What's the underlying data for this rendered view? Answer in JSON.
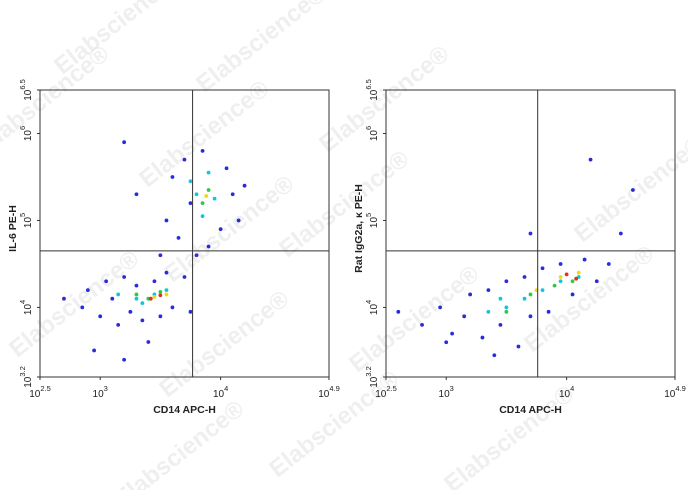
{
  "watermark": "Elabscience®",
  "chart_data": [
    {
      "type": "scatter",
      "x_label": "CD14 APC-H",
      "y_label": "IL-6 PE-H",
      "xscale": "log",
      "yscale": "log",
      "xlim": [
        316.23,
        79432.82
      ],
      "ylim": [
        1584.89,
        3162277.66
      ],
      "xticks": [
        {
          "value": 316.23,
          "label": "10^2.5"
        },
        {
          "value": 1000,
          "label": "10^3"
        },
        {
          "value": 10000,
          "label": "10^4"
        },
        {
          "value": 79432.82,
          "label": "10^4.9"
        }
      ],
      "yticks": [
        {
          "value": 1584.89,
          "label": "10^3.2"
        },
        {
          "value": 10000,
          "label": "10^4"
        },
        {
          "value": 100000,
          "label": "10^5"
        },
        {
          "value": 1000000,
          "label": "10^6"
        },
        {
          "value": 3162277.66,
          "label": "10^6.5"
        }
      ],
      "gate": {
        "x": 5850,
        "y": 44700
      },
      "series": [
        {
          "color": "#2b2bd9",
          "x": [
            710,
            790,
            1000,
            1120,
            1260,
            1410,
            1580,
            1780,
            2000,
            2240,
            2820,
            3160,
            3550,
            3980,
            5010,
            5620,
            500,
            890,
            2510,
            1580,
            3550,
            3980,
            4470,
            5010,
            5620,
            6310,
            7080,
            10000,
            11200,
            12600,
            15800,
            7940,
            2000,
            3160,
            14100,
            1580
          ],
          "values": [
            10000,
            15800,
            7900,
            20000,
            12600,
            6300,
            22400,
            8900,
            17800,
            7100,
            20000,
            7900,
            25100,
            10000,
            22400,
            8900,
            12600,
            3200,
            4000,
            2500,
            100000,
            316000,
            63100,
            501000,
            158000,
            39800,
            631000,
            79400,
            398000,
            200000,
            251000,
            50100,
            200000,
            39800,
            100000,
            794000
          ]
        },
        {
          "color": "#14c3e0",
          "x": [
            1410,
            2000,
            2820,
            3550,
            2240,
            6310,
            7080,
            8910,
            5620,
            7940
          ],
          "values": [
            14100,
            12600,
            14100,
            15800,
            11200,
            200000,
            112000,
            178000,
            282000,
            355000
          ]
        },
        {
          "color": "#2fc84a",
          "x": [
            2000,
            2510,
            3160,
            7080,
            7940
          ],
          "values": [
            14100,
            12600,
            15100,
            158000,
            224000
          ]
        },
        {
          "color": "#eadb12",
          "x": [
            2820,
            3550,
            7590
          ],
          "values": [
            13200,
            14100,
            191000
          ]
        },
        {
          "color": "#e2321c",
          "x": [
            3160,
            2630
          ],
          "values": [
            13800,
            12600
          ]
        }
      ]
    },
    {
      "type": "scatter",
      "x_label": "CD14 APC-H",
      "y_label": "Rat IgG2a, κ PE-H",
      "xscale": "log",
      "yscale": "log",
      "xlim": [
        316.23,
        79432.82
      ],
      "ylim": [
        1584.89,
        3162277.66
      ],
      "xticks": [
        {
          "value": 316.23,
          "label": "10^2.5"
        },
        {
          "value": 1000,
          "label": "10^3"
        },
        {
          "value": 10000,
          "label": "10^4"
        },
        {
          "value": 79432.82,
          "label": "10^4.9"
        }
      ],
      "yticks": [
        {
          "value": 1584.89,
          "label": "10^3.2"
        },
        {
          "value": 10000,
          "label": "10^4"
        },
        {
          "value": 100000,
          "label": "10^5"
        },
        {
          "value": 1000000,
          "label": "10^6"
        },
        {
          "value": 3162277.66,
          "label": "10^6.5"
        }
      ],
      "gate": {
        "x": 5750,
        "y": 44700
      },
      "series": [
        {
          "color": "#2b2bd9",
          "x": [
            400,
            630,
            890,
            1120,
            1410,
            1580,
            2000,
            2240,
            2820,
            3160,
            3980,
            4470,
            5010,
            6310,
            7080,
            8910,
            11200,
            14100,
            17800,
            22400,
            2510,
            1000,
            15800,
            35500,
            28200,
            5010
          ],
          "values": [
            8900,
            6300,
            10000,
            5000,
            7900,
            14100,
            4500,
            15800,
            6300,
            20000,
            3550,
            22400,
            7900,
            28200,
            8900,
            31600,
            14100,
            35500,
            20000,
            31600,
            2820,
            3980,
            501000,
            224000,
            70800,
            70800
          ]
        },
        {
          "color": "#14c3e0",
          "x": [
            2240,
            3160,
            4470,
            6310,
            8910,
            12600,
            2820
          ],
          "values": [
            8900,
            10000,
            12600,
            15800,
            20000,
            22400,
            12600
          ]
        },
        {
          "color": "#2fc84a",
          "x": [
            3160,
            5010,
            7940,
            11200
          ],
          "values": [
            8900,
            14100,
            17800,
            20000
          ]
        },
        {
          "color": "#eadb12",
          "x": [
            8910,
            12600,
            5620
          ],
          "values": [
            22400,
            25100,
            15800
          ]
        },
        {
          "color": "#e2321c",
          "x": [
            10000,
            12000
          ],
          "values": [
            24000,
            21400
          ]
        }
      ]
    }
  ]
}
